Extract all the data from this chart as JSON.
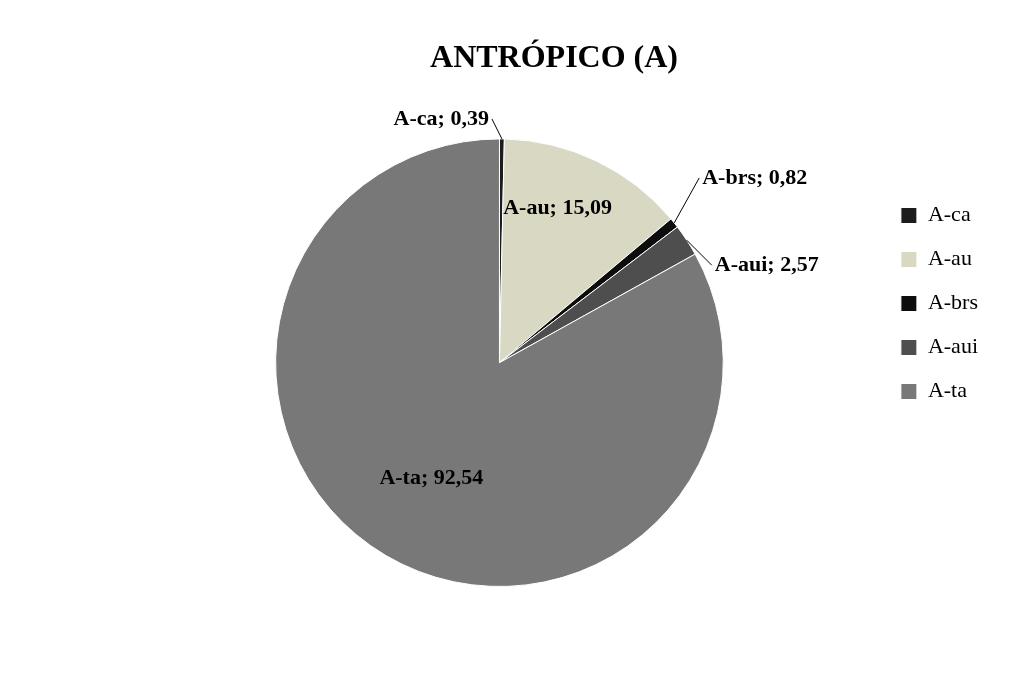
{
  "chart_data": {
    "type": "pie",
    "title": "ANTRÓPICO (A)",
    "categories": [
      "A-ca",
      "A-au",
      "A-brs",
      "A-aui",
      "A-ta"
    ],
    "values": [
      0.39,
      15.09,
      0.82,
      2.57,
      92.54
    ],
    "colors": [
      "#1c1c1c",
      "#d9d8c2",
      "#0d0d0d",
      "#4e4e4e",
      "#787878"
    ],
    "value_labels": [
      "A-ca; 0,39",
      "A-au; 15,09",
      "A-brs; 0,82",
      "A-aui; 2,57",
      "A-ta; 92,54"
    ],
    "legend": "right"
  }
}
